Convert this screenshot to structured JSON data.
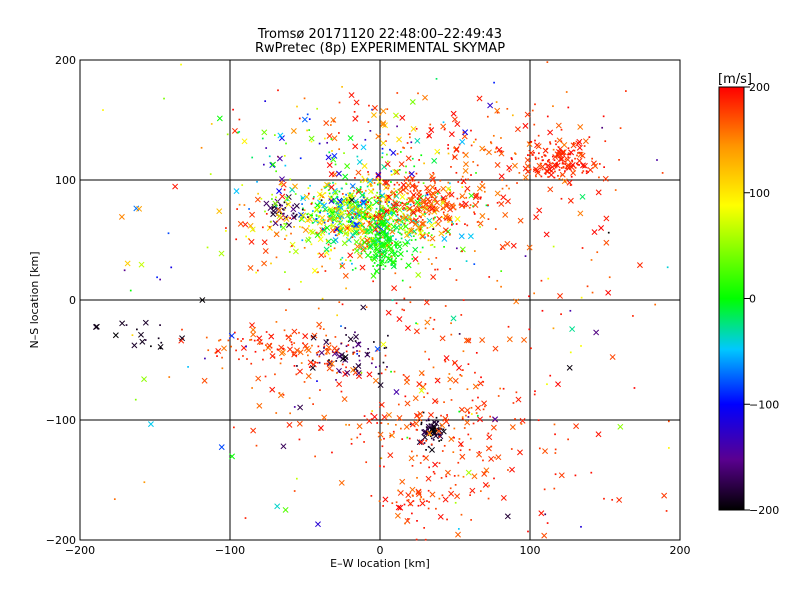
{
  "chart_data": {
    "type": "scatter",
    "title": "Tromsø 20171120 22:48:00–22:49:43",
    "subtitle": "RwPretec (8p) EXPERIMENTAL SKYMAP",
    "xlabel": "E–W location [km]",
    "ylabel": "N–S location [km]",
    "xlim": [
      -200,
      200
    ],
    "ylim": [
      -200,
      200
    ],
    "xticks": [
      -200,
      -100,
      0,
      100,
      200
    ],
    "yticks": [
      -200,
      -100,
      0,
      100,
      200
    ],
    "grid": true,
    "colorbar": {
      "label": "[m/s]",
      "min": -200,
      "max": 200,
      "ticks": [
        -200,
        -100,
        0,
        100,
        200
      ]
    },
    "markers": [
      "x",
      "dot"
    ],
    "clusters": [
      {
        "x": 0,
        "y": 70,
        "sx": 25,
        "sy": 15,
        "n": 520,
        "vmin": -60,
        "vmax": 200
      },
      {
        "x": -20,
        "y": 70,
        "sx": 18,
        "sy": 12,
        "n": 220,
        "vmin": -100,
        "vmax": 120
      },
      {
        "x": 30,
        "y": 80,
        "sx": 20,
        "sy": 10,
        "n": 160,
        "vmin": 150,
        "vmax": 200
      },
      {
        "x": 5,
        "y": 45,
        "sx": 8,
        "sy": 12,
        "n": 160,
        "vmin": -20,
        "vmax": 20
      },
      {
        "x": -65,
        "y": 75,
        "sx": 7,
        "sy": 6,
        "n": 45,
        "vmin": -200,
        "vmax": -150
      },
      {
        "x": -60,
        "y": 60,
        "sx": 25,
        "sy": 20,
        "n": 90,
        "vmin": 50,
        "vmax": 200
      },
      {
        "x": 120,
        "y": 115,
        "sx": 10,
        "sy": 8,
        "n": 140,
        "vmin": 170,
        "vmax": 200
      },
      {
        "x": 80,
        "y": 120,
        "sx": 45,
        "sy": 25,
        "n": 180,
        "vmin": 150,
        "vmax": 200
      },
      {
        "x": -30,
        "y": 120,
        "sx": 40,
        "sy": 20,
        "n": 110,
        "vmin": -150,
        "vmax": 200
      },
      {
        "x": 0,
        "y": 150,
        "sx": 40,
        "sy": 15,
        "n": 40,
        "vmin": 100,
        "vmax": 200
      },
      {
        "x": 35,
        "y": -110,
        "sx": 5,
        "sy": 6,
        "n": 70,
        "vmin": -200,
        "vmax": -170
      },
      {
        "x": 45,
        "y": -95,
        "sx": 25,
        "sy": 40,
        "n": 150,
        "vmin": 150,
        "vmax": 200
      },
      {
        "x": -60,
        "y": -40,
        "sx": 25,
        "sy": 10,
        "n": 110,
        "vmin": 150,
        "vmax": 200
      },
      {
        "x": -20,
        "y": -45,
        "sx": 15,
        "sy": 10,
        "n": 60,
        "vmin": -200,
        "vmax": -150
      },
      {
        "x": -40,
        "y": -70,
        "sx": 35,
        "sy": 25,
        "n": 60,
        "vmin": 150,
        "vmax": 200
      },
      {
        "x": -160,
        "y": -30,
        "sx": 20,
        "sy": 8,
        "n": 18,
        "vmin": -200,
        "vmax": -180
      },
      {
        "x": 25,
        "y": -170,
        "sx": 10,
        "sy": 12,
        "n": 45,
        "vmin": 150,
        "vmax": 200
      },
      {
        "x": 60,
        "y": -130,
        "sx": 60,
        "sy": 40,
        "n": 110,
        "vmin": 170,
        "vmax": 200
      },
      {
        "x": 60,
        "y": 20,
        "sx": 50,
        "sy": 30,
        "n": 70,
        "vmin": 150,
        "vmax": 200
      },
      {
        "x": 0,
        "y": 0,
        "sx": 110,
        "sy": 110,
        "n": 160,
        "vmin": -200,
        "vmax": 200
      }
    ]
  }
}
